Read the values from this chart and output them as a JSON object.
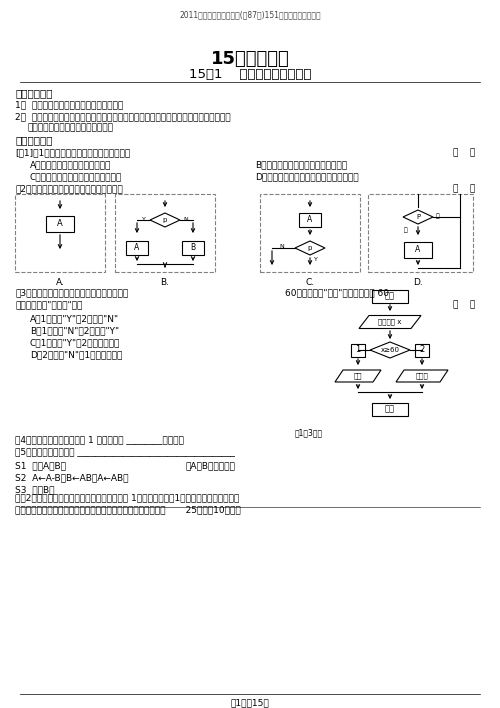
{
  "title_header": "2011年高考数学一轮复习(共87节)151算法的含义与流程图",
  "title_main": "15、算法初步",
  "title_sub": "15．1    算法的含义与流程图",
  "bg_color": "#ffffff",
  "text_color": "#000000",
  "page_footer": "第1页共15页"
}
